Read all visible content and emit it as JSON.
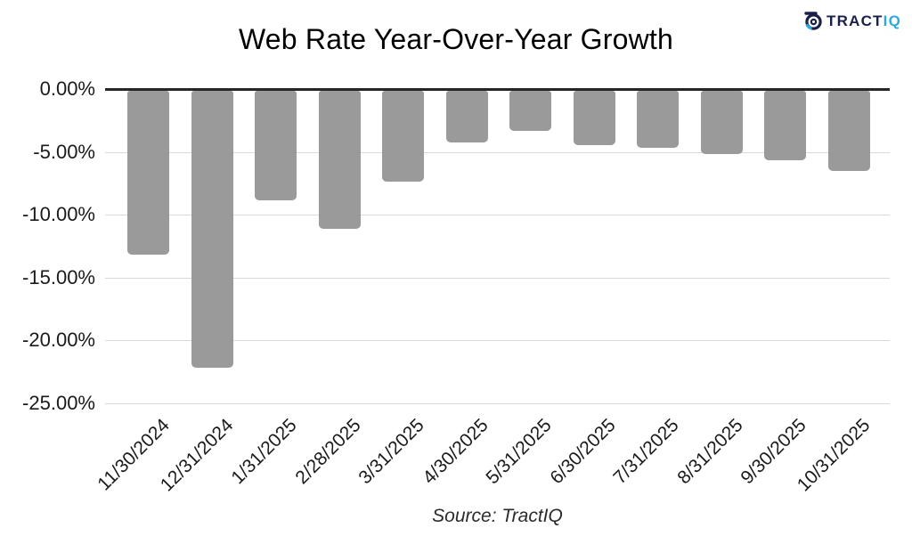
{
  "title": "Web Rate Year-Over-Year Growth",
  "source": "Source: TractIQ",
  "logo": {
    "brand_dark": "TRACT",
    "brand_light": "IQ",
    "color_dark": "#1a2049",
    "color_light": "#2ea9e0"
  },
  "chart_data": {
    "type": "bar",
    "title": "Web Rate Year-Over-Year Growth",
    "categories": [
      "11/30/2024",
      "12/31/2024",
      "1/31/2025",
      "2/28/2025",
      "3/31/2025",
      "4/30/2025",
      "5/31/2025",
      "6/30/2025",
      "7/31/2025",
      "8/31/2025",
      "9/30/2025",
      "10/31/2025"
    ],
    "values": [
      -13.0,
      -22.0,
      -8.7,
      -11.0,
      -7.2,
      -4.1,
      -3.2,
      -4.3,
      -4.5,
      -5.0,
      -5.5,
      -6.4
    ],
    "unit": "%",
    "xlabel": "",
    "ylabel": "",
    "ylim": [
      -25,
      0
    ],
    "yticks": [
      0,
      -5,
      -10,
      -15,
      -20,
      -25
    ],
    "ytick_labels": [
      "0.00%",
      "-5.00%",
      "-10.00%",
      "-15.00%",
      "-20.00%",
      "-25.00%"
    ],
    "grid": true,
    "legend": false,
    "bar_color": "#9a9a9a",
    "axis_color": "#262626",
    "gridline_color": "#d9d9d9"
  }
}
